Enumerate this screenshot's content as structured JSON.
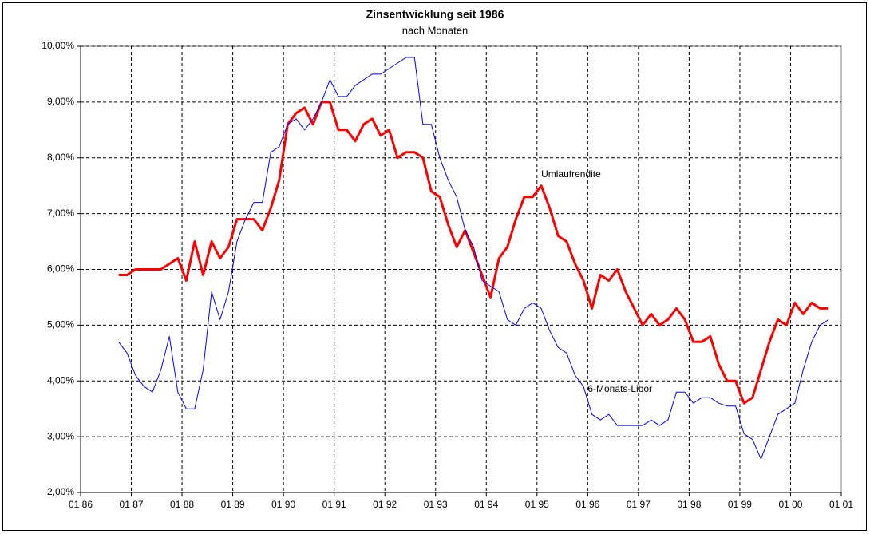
{
  "chart_data": {
    "type": "line",
    "title": "Zinsentwicklung seit 1986",
    "subtitle": "nach Monaten",
    "annotations": [
      {
        "text": "Umlaufrendite",
        "x": "1995-02",
        "y": 7.7
      },
      {
        "text": "6-Monats-Libor",
        "x": "1996-01",
        "y": 3.85
      }
    ],
    "x": [
      "1986-10",
      "1986-12",
      "1987-02",
      "1987-04",
      "1987-06",
      "1987-08",
      "1987-10",
      "1987-12",
      "1988-02",
      "1988-04",
      "1988-06",
      "1988-08",
      "1988-10",
      "1988-12",
      "1989-02",
      "1989-04",
      "1989-06",
      "1989-08",
      "1989-10",
      "1989-12",
      "1990-02",
      "1990-04",
      "1990-06",
      "1990-08",
      "1990-10",
      "1990-12",
      "1991-02",
      "1991-04",
      "1991-06",
      "1991-08",
      "1991-10",
      "1991-12",
      "1992-02",
      "1992-04",
      "1992-06",
      "1992-08",
      "1992-10",
      "1992-12",
      "1993-02",
      "1993-04",
      "1993-06",
      "1993-08",
      "1993-10",
      "1993-12",
      "1994-02",
      "1994-04",
      "1994-06",
      "1994-08",
      "1994-10",
      "1994-12",
      "1995-02",
      "1995-04",
      "1995-06",
      "1995-08",
      "1995-10",
      "1995-12",
      "1996-02",
      "1996-04",
      "1996-06",
      "1996-08",
      "1996-10",
      "1996-12",
      "1997-02",
      "1997-04",
      "1997-06",
      "1997-08",
      "1997-10",
      "1997-12",
      "1998-02",
      "1998-04",
      "1998-06",
      "1998-08",
      "1998-10",
      "1998-12",
      "1999-02",
      "1999-04",
      "1999-06",
      "1999-08",
      "1999-10",
      "1999-12",
      "2000-02",
      "2000-04",
      "2000-06",
      "2000-08",
      "2000-10"
    ],
    "series": [
      {
        "name": "Umlaufrendite",
        "color": "#ff0000",
        "width": 3,
        "values": [
          5.9,
          5.9,
          6.0,
          6.0,
          6.0,
          6.0,
          6.1,
          6.2,
          5.8,
          6.5,
          5.9,
          6.5,
          6.2,
          6.4,
          6.9,
          6.9,
          6.9,
          6.7,
          7.1,
          7.6,
          8.6,
          8.8,
          8.9,
          8.6,
          9.0,
          9.0,
          8.5,
          8.5,
          8.3,
          8.6,
          8.7,
          8.4,
          8.5,
          8.0,
          8.1,
          8.1,
          8.0,
          7.4,
          7.3,
          6.8,
          6.4,
          6.7,
          6.3,
          5.9,
          5.5,
          6.2,
          6.4,
          6.9,
          7.3,
          7.3,
          7.5,
          7.1,
          6.6,
          6.5,
          6.1,
          5.8,
          5.3,
          5.9,
          5.8,
          6.0,
          5.6,
          5.3,
          5.0,
          5.2,
          5.0,
          5.1,
          5.3,
          5.1,
          4.7,
          4.7,
          4.8,
          4.3,
          4.0,
          4.0,
          3.6,
          3.7,
          4.2,
          4.7,
          5.1,
          5.0,
          5.4,
          5.2,
          5.4,
          5.3,
          5.3
        ]
      },
      {
        "name": "6-Monats-Libor",
        "color": "#0000ff",
        "width": 1,
        "values": [
          4.7,
          4.5,
          4.1,
          3.9,
          3.8,
          4.2,
          4.8,
          3.8,
          3.5,
          3.5,
          4.2,
          5.6,
          5.1,
          5.6,
          6.5,
          6.9,
          7.2,
          7.2,
          8.1,
          8.2,
          8.6,
          8.7,
          8.5,
          8.7,
          9.0,
          9.4,
          9.1,
          9.1,
          9.3,
          9.4,
          9.5,
          9.5,
          9.6,
          9.7,
          9.8,
          9.8,
          8.6,
          8.6,
          8.0,
          7.6,
          7.3,
          6.7,
          6.4,
          5.8,
          5.7,
          5.6,
          5.1,
          5.0,
          5.3,
          5.4,
          5.3,
          4.9,
          4.6,
          4.5,
          4.1,
          3.9,
          3.4,
          3.3,
          3.4,
          3.2,
          3.2,
          3.2,
          3.2,
          3.3,
          3.2,
          3.3,
          3.8,
          3.8,
          3.6,
          3.7,
          3.7,
          3.6,
          3.55,
          3.55,
          3.05,
          2.95,
          2.6,
          3.0,
          3.4,
          3.5,
          3.6,
          4.2,
          4.7,
          5.0,
          5.1
        ]
      }
    ],
    "ylim": [
      2,
      10
    ],
    "yticks": [
      {
        "value": 2,
        "label": "2,00%"
      },
      {
        "value": 3,
        "label": "3,00%"
      },
      {
        "value": 4,
        "label": "4,00%"
      },
      {
        "value": 5,
        "label": "5,00%"
      },
      {
        "value": 6,
        "label": "6,00%"
      },
      {
        "value": 7,
        "label": "7,00%"
      },
      {
        "value": 8,
        "label": "8,00%"
      },
      {
        "value": 9,
        "label": "9,00%"
      },
      {
        "value": 10,
        "label": "10,00%"
      }
    ],
    "xlim": [
      "1986-01",
      "2001-01"
    ],
    "xticks": [
      {
        "value": "1986-01",
        "label": "01 86"
      },
      {
        "value": "1987-01",
        "label": "01 87"
      },
      {
        "value": "1988-01",
        "label": "01 88"
      },
      {
        "value": "1989-01",
        "label": "01 89"
      },
      {
        "value": "1990-01",
        "label": "01 90"
      },
      {
        "value": "1991-01",
        "label": "01 91"
      },
      {
        "value": "1992-01",
        "label": "01 92"
      },
      {
        "value": "1993-01",
        "label": "01 93"
      },
      {
        "value": "1994-01",
        "label": "01 94"
      },
      {
        "value": "1995-01",
        "label": "01 95"
      },
      {
        "value": "1996-01",
        "label": "01 96"
      },
      {
        "value": "1997-01",
        "label": "01 97"
      },
      {
        "value": "1998-01",
        "label": "01 98"
      },
      {
        "value": "1999-01",
        "label": "01 99"
      },
      {
        "value": "2000-01",
        "label": "01 00"
      },
      {
        "value": "2001-01",
        "label": "01 01"
      }
    ],
    "grid": true
  }
}
